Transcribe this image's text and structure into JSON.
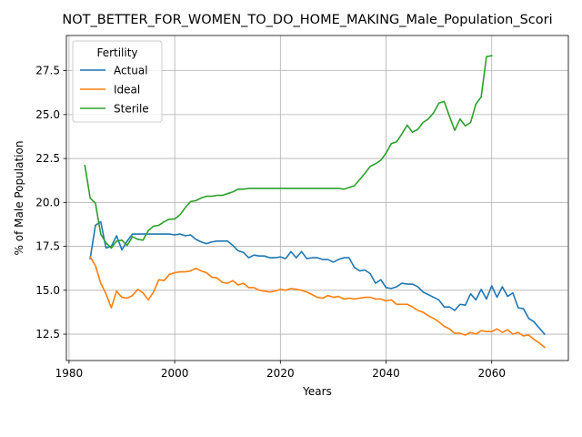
{
  "chart_data": {
    "type": "line",
    "title": "NOT_BETTER_FOR_WOMEN_TO_DO_HOME_MAKING_Male_Population_Scori",
    "xlabel": "Years",
    "ylabel": "% of Male Population",
    "xlim": [
      1979.5,
      2074.5
    ],
    "ylim": [
      11.0,
      29.5
    ],
    "xticks": [
      1980,
      2000,
      2020,
      2040,
      2060
    ],
    "yticks": [
      12.5,
      15.0,
      17.5,
      20.0,
      22.5,
      25.0,
      27.5
    ],
    "grid": true,
    "legend": {
      "title": "Fertility",
      "placement": "top-left"
    },
    "colors": {
      "Actual": "#1f77b4",
      "Ideal": "#ff7f0e",
      "Sterile": "#2ca02c"
    },
    "series": [
      {
        "name": "Actual",
        "x": [
          1984,
          1985,
          1986,
          1987,
          1988,
          1989,
          1990,
          1991,
          1992,
          1993,
          1994,
          1995,
          1996,
          1997,
          1998,
          1999,
          2000,
          2001,
          2002,
          2003,
          2004,
          2005,
          2006,
          2007,
          2008,
          2009,
          2010,
          2011,
          2012,
          2013,
          2014,
          2015,
          2016,
          2017,
          2018,
          2019,
          2020,
          2021,
          2022,
          2023,
          2024,
          2025,
          2026,
          2027,
          2028,
          2029,
          2030,
          2031,
          2032,
          2033,
          2034,
          2035,
          2036,
          2037,
          2038,
          2039,
          2040,
          2041,
          2042,
          2043,
          2044,
          2045,
          2046,
          2047,
          2048,
          2049,
          2050,
          2051,
          2052,
          2053,
          2054,
          2055,
          2056,
          2057,
          2058,
          2059,
          2060,
          2061,
          2062,
          2063,
          2064,
          2065,
          2066,
          2067,
          2068,
          2069,
          2070
        ],
        "y": [
          16.8,
          18.7,
          18.9,
          17.4,
          17.5,
          18.1,
          17.3,
          17.8,
          18.2,
          18.2,
          18.2,
          18.2,
          18.2,
          18.2,
          18.2,
          18.2,
          18.15,
          18.2,
          18.1,
          18.15,
          17.9,
          17.75,
          17.65,
          17.75,
          17.8,
          17.8,
          17.8,
          17.55,
          17.25,
          17.15,
          16.85,
          17.0,
          16.95,
          16.95,
          16.85,
          16.85,
          16.9,
          16.8,
          17.2,
          16.85,
          17.2,
          16.8,
          16.85,
          16.85,
          16.75,
          16.75,
          16.6,
          16.75,
          16.85,
          16.85,
          16.3,
          16.1,
          16.15,
          15.95,
          15.4,
          15.6,
          15.15,
          15.1,
          15.2,
          15.4,
          15.35,
          15.35,
          15.2,
          14.9,
          14.75,
          14.6,
          14.45,
          14.05,
          14.05,
          13.85,
          14.2,
          14.15,
          14.8,
          14.45,
          15.05,
          14.5,
          15.25,
          14.6,
          15.2,
          14.65,
          14.85,
          14.0,
          13.95,
          13.4,
          13.2,
          12.85,
          12.5
        ]
      },
      {
        "name": "Ideal",
        "x": [
          1984,
          1985,
          1986,
          1987,
          1988,
          1989,
          1990,
          1991,
          1992,
          1993,
          1994,
          1995,
          1996,
          1997,
          1998,
          1999,
          2000,
          2001,
          2002,
          2003,
          2004,
          2005,
          2006,
          2007,
          2008,
          2009,
          2010,
          2011,
          2012,
          2013,
          2014,
          2015,
          2016,
          2017,
          2018,
          2019,
          2020,
          2021,
          2022,
          2023,
          2024,
          2025,
          2026,
          2027,
          2028,
          2029,
          2030,
          2031,
          2032,
          2033,
          2034,
          2035,
          2036,
          2037,
          2038,
          2039,
          2040,
          2041,
          2042,
          2043,
          2044,
          2045,
          2046,
          2047,
          2048,
          2049,
          2050,
          2051,
          2052,
          2053,
          2054,
          2055,
          2056,
          2057,
          2058,
          2059,
          2060,
          2061,
          2062,
          2063,
          2064,
          2065,
          2066,
          2067,
          2068,
          2069,
          2070
        ],
        "y": [
          16.9,
          16.4,
          15.4,
          14.8,
          14.0,
          14.95,
          14.6,
          14.55,
          14.7,
          15.05,
          14.85,
          14.45,
          14.9,
          15.6,
          15.55,
          15.9,
          16.0,
          16.05,
          16.05,
          16.1,
          16.25,
          16.1,
          16.0,
          15.75,
          15.7,
          15.45,
          15.4,
          15.55,
          15.3,
          15.4,
          15.15,
          15.15,
          15.0,
          14.95,
          14.9,
          14.95,
          15.05,
          15.0,
          15.1,
          15.05,
          15.0,
          14.9,
          14.75,
          14.6,
          14.55,
          14.7,
          14.6,
          14.65,
          14.5,
          14.55,
          14.5,
          14.55,
          14.6,
          14.6,
          14.5,
          14.5,
          14.4,
          14.45,
          14.2,
          14.2,
          14.2,
          14.05,
          13.85,
          13.75,
          13.55,
          13.4,
          13.2,
          12.95,
          12.8,
          12.55,
          12.55,
          12.45,
          12.6,
          12.5,
          12.7,
          12.65,
          12.65,
          12.8,
          12.6,
          12.75,
          12.5,
          12.6,
          12.4,
          12.45,
          12.2,
          12.0,
          11.75
        ]
      },
      {
        "name": "Sterile",
        "x": [
          1983,
          1984,
          1985,
          1986,
          1987,
          1988,
          1989,
          1990,
          1991,
          1992,
          1993,
          1994,
          1995,
          1996,
          1997,
          1998,
          1999,
          2000,
          2001,
          2002,
          2003,
          2004,
          2005,
          2006,
          2007,
          2008,
          2009,
          2010,
          2011,
          2012,
          2013,
          2014,
          2015,
          2016,
          2017,
          2018,
          2019,
          2020,
          2021,
          2022,
          2023,
          2024,
          2025,
          2026,
          2027,
          2028,
          2029,
          2030,
          2031,
          2032,
          2033,
          2034,
          2035,
          2036,
          2037,
          2038,
          2039,
          2040,
          2041,
          2042,
          2043,
          2044,
          2045,
          2046,
          2047,
          2048,
          2049,
          2050,
          2051,
          2052,
          2053,
          2054,
          2055,
          2056,
          2057,
          2058,
          2059,
          2060
        ],
        "y": [
          22.1,
          20.25,
          19.95,
          18.2,
          17.7,
          17.4,
          17.8,
          17.85,
          17.55,
          18.05,
          17.9,
          17.85,
          18.4,
          18.65,
          18.7,
          18.9,
          19.05,
          19.05,
          19.3,
          19.7,
          20.05,
          20.1,
          20.25,
          20.35,
          20.35,
          20.4,
          20.4,
          20.5,
          20.6,
          20.75,
          20.75,
          20.8,
          20.8,
          20.8,
          20.8,
          20.8,
          20.8,
          20.8,
          20.8,
          20.8,
          20.8,
          20.8,
          20.8,
          20.8,
          20.8,
          20.8,
          20.8,
          20.8,
          20.8,
          20.75,
          20.85,
          20.95,
          21.3,
          21.65,
          22.05,
          22.2,
          22.4,
          22.8,
          23.35,
          23.45,
          23.9,
          24.4,
          24.0,
          24.15,
          24.55,
          24.75,
          25.1,
          25.65,
          25.75,
          24.9,
          24.1,
          24.75,
          24.35,
          24.55,
          25.6,
          26.0,
          28.3,
          28.35
        ]
      }
    ]
  }
}
